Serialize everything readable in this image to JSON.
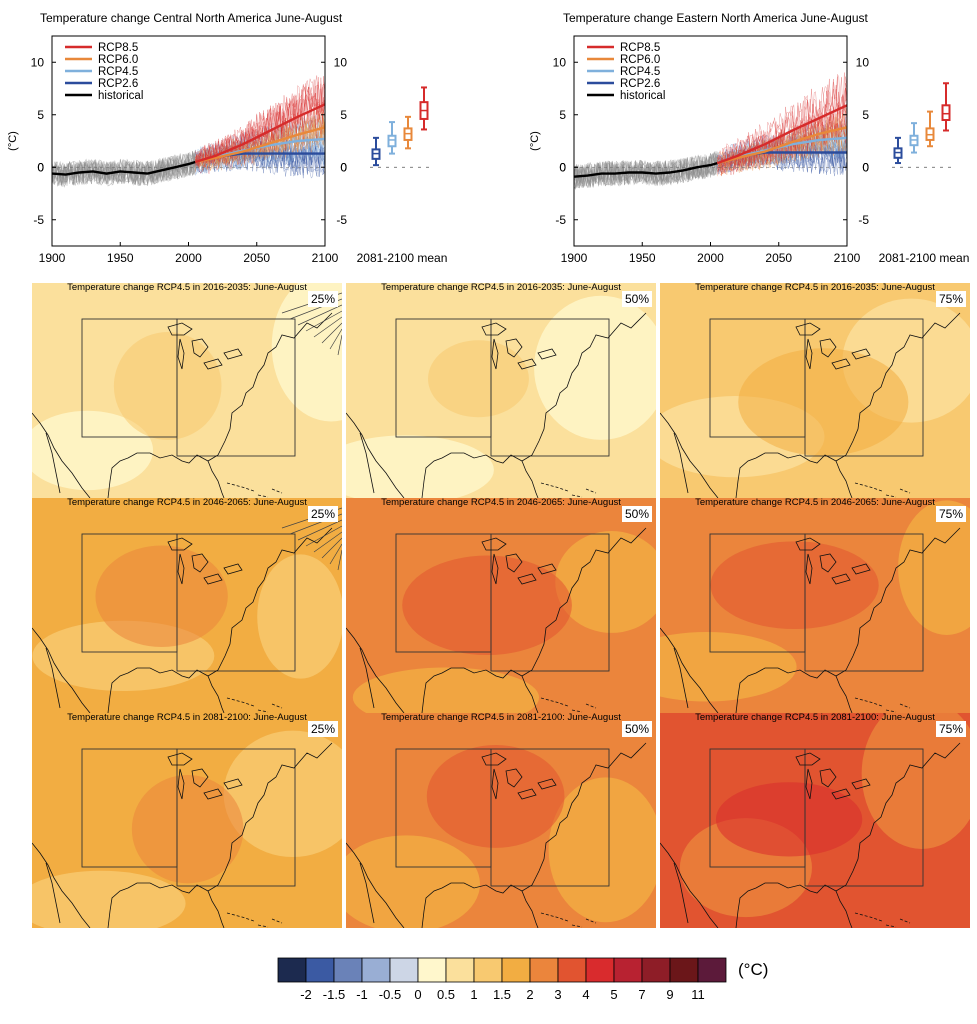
{
  "colors": {
    "rcp85": "#d62b2b",
    "rcp60": "#e8883a",
    "rcp45": "#7fb0dc",
    "rcp26": "#2b4c9c",
    "historical": "#000000",
    "hist_spread": "#8c8c8c"
  },
  "colorbar": {
    "levels": [
      "-2",
      "-1.5",
      "-1",
      "-0.5",
      "0",
      "0.5",
      "1",
      "1.5",
      "2",
      "3",
      "4",
      "5",
      "7",
      "9",
      "11"
    ],
    "colors": [
      "#1c2a4f",
      "#3b5aa3",
      "#6a82b8",
      "#99aed4",
      "#cdd6e6",
      "#fff7cc",
      "#fbe09c",
      "#f8c970",
      "#f2ad42",
      "#eb853c",
      "#e15430",
      "#d92b2d",
      "#b82231",
      "#8e1d27",
      "#6b1619",
      "#5c1a3a"
    ],
    "unit": "(°C)"
  },
  "chart_data": [
    {
      "type": "line",
      "title": "Temperature change Central North America June-August",
      "ylabel": "(°C)",
      "xlim": [
        1900,
        2100
      ],
      "ylim": [
        -7.5,
        12.5
      ],
      "xticks": [
        "1900",
        "1950",
        "2000",
        "2050",
        "2100"
      ],
      "yticks": [
        "-5",
        "0",
        "5",
        "10"
      ],
      "legend": [
        "RCP8.5",
        "RCP6.0",
        "RCP4.5",
        "RCP2.6",
        "historical"
      ],
      "legend_position": "top-left",
      "series": [
        {
          "name": "historical",
          "x": [
            1900,
            1910,
            1920,
            1930,
            1940,
            1950,
            1960,
            1970,
            1980,
            1990,
            2000,
            2005
          ],
          "y": [
            -0.6,
            -0.7,
            -0.5,
            -0.4,
            -0.6,
            -0.4,
            -0.5,
            -0.6,
            -0.3,
            0.0,
            0.3,
            0.5
          ]
        },
        {
          "name": "RCP2.6",
          "x": [
            2005,
            2020,
            2040,
            2060,
            2080,
            2100
          ],
          "y": [
            0.5,
            1.0,
            1.3,
            1.3,
            1.3,
            1.3
          ]
        },
        {
          "name": "RCP4.5",
          "x": [
            2005,
            2020,
            2040,
            2060,
            2080,
            2100
          ],
          "y": [
            0.5,
            1.0,
            1.6,
            2.1,
            2.5,
            2.7
          ]
        },
        {
          "name": "RCP6.0",
          "x": [
            2005,
            2020,
            2040,
            2060,
            2080,
            2100
          ],
          "y": [
            0.5,
            0.9,
            1.5,
            2.3,
            3.1,
            3.8
          ]
        },
        {
          "name": "RCP8.5",
          "x": [
            2005,
            2020,
            2040,
            2060,
            2080,
            2100
          ],
          "y": [
            0.5,
            1.1,
            2.2,
            3.5,
            4.8,
            6.0
          ]
        }
      ],
      "boxplot_label": "2081-2100 mean",
      "boxplots": [
        {
          "name": "RCP2.6",
          "whisker_low": 0.2,
          "q1": 0.8,
          "median": 1.3,
          "q3": 1.7,
          "whisker_high": 2.8
        },
        {
          "name": "RCP4.5",
          "whisker_low": 1.3,
          "q1": 2.0,
          "median": 2.6,
          "q3": 3.0,
          "whisker_high": 4.3
        },
        {
          "name": "RCP6.0",
          "whisker_low": 1.8,
          "q1": 2.6,
          "median": 3.2,
          "q3": 3.7,
          "whisker_high": 4.8
        },
        {
          "name": "RCP8.5",
          "whisker_low": 3.6,
          "q1": 4.6,
          "median": 5.4,
          "q3": 6.2,
          "whisker_high": 7.6
        }
      ]
    },
    {
      "type": "line",
      "title": "Temperature change Eastern North America June-August",
      "ylabel": "(°C)",
      "xlim": [
        1900,
        2100
      ],
      "ylim": [
        -7.5,
        12.5
      ],
      "xticks": [
        "1900",
        "1950",
        "2000",
        "2050",
        "2100"
      ],
      "yticks": [
        "-5",
        "0",
        "5",
        "10"
      ],
      "legend": [
        "RCP8.5",
        "RCP6.0",
        "RCP4.5",
        "RCP2.6",
        "historical"
      ],
      "legend_position": "top-left",
      "series": [
        {
          "name": "historical",
          "x": [
            1900,
            1910,
            1920,
            1930,
            1940,
            1950,
            1960,
            1970,
            1980,
            1990,
            2000,
            2005
          ],
          "y": [
            -0.9,
            -0.8,
            -0.6,
            -0.6,
            -0.5,
            -0.5,
            -0.6,
            -0.5,
            -0.3,
            0.0,
            0.2,
            0.4
          ]
        },
        {
          "name": "RCP2.6",
          "x": [
            2005,
            2020,
            2040,
            2060,
            2080,
            2100
          ],
          "y": [
            0.4,
            1.0,
            1.4,
            1.4,
            1.4,
            1.4
          ]
        },
        {
          "name": "RCP4.5",
          "x": [
            2005,
            2020,
            2040,
            2060,
            2080,
            2100
          ],
          "y": [
            0.4,
            1.0,
            1.6,
            2.2,
            2.6,
            2.8
          ]
        },
        {
          "name": "RCP6.0",
          "x": [
            2005,
            2020,
            2040,
            2060,
            2080,
            2100
          ],
          "y": [
            0.4,
            0.9,
            1.5,
            2.4,
            3.2,
            3.8
          ]
        },
        {
          "name": "RCP8.5",
          "x": [
            2005,
            2020,
            2040,
            2060,
            2080,
            2100
          ],
          "y": [
            0.4,
            1.1,
            2.2,
            3.5,
            4.7,
            5.9
          ]
        }
      ],
      "boxplot_label": "2081-2100 mean",
      "boxplots": [
        {
          "name": "RCP2.6",
          "whisker_low": 0.4,
          "q1": 0.9,
          "median": 1.4,
          "q3": 1.8,
          "whisker_high": 2.8
        },
        {
          "name": "RCP4.5",
          "whisker_low": 1.4,
          "q1": 2.1,
          "median": 2.6,
          "q3": 3.0,
          "whisker_high": 4.2
        },
        {
          "name": "RCP6.0",
          "whisker_low": 2.0,
          "q1": 2.6,
          "median": 3.1,
          "q3": 3.7,
          "whisker_high": 5.3
        },
        {
          "name": "RCP8.5",
          "whisker_low": 3.5,
          "q1": 4.5,
          "median": 5.1,
          "q3": 5.9,
          "whisker_high": 8.0
        }
      ]
    },
    {
      "type": "heatmap",
      "title": "Temperature change RCP4.5 in 2016-2035: June-August",
      "maps": [
        {
          "percentile": "25%",
          "level": "0.5-1"
        },
        {
          "percentile": "50%",
          "level": "0.5-1"
        },
        {
          "percentile": "75%",
          "level": "1-1.5"
        }
      ]
    },
    {
      "type": "heatmap",
      "title": "Temperature change RCP4.5 in 2046-2065: June-August",
      "maps": [
        {
          "percentile": "25%",
          "level": "1.5-2"
        },
        {
          "percentile": "50%",
          "level": "2-3"
        },
        {
          "percentile": "75%",
          "level": "2-3"
        }
      ]
    },
    {
      "type": "heatmap",
      "title": "Temperature change RCP4.5 in 2081-2100: June-August",
      "maps": [
        {
          "percentile": "25%",
          "level": "1.5-2"
        },
        {
          "percentile": "50%",
          "level": "2-3"
        },
        {
          "percentile": "75%",
          "level": "3-4"
        }
      ]
    }
  ]
}
